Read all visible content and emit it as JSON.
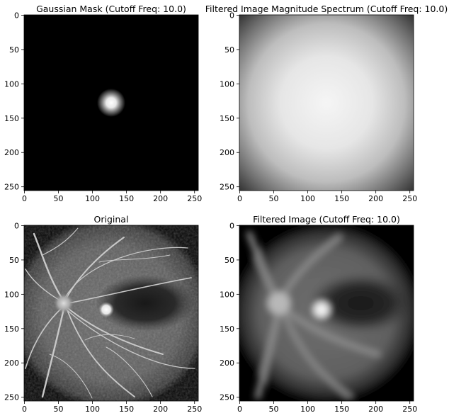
{
  "figure": {
    "layout": "2x2 grid",
    "background": "#ffffff"
  },
  "chart_data": [
    {
      "type": "heatmap",
      "title": "Gaussian Mask (Cutoff Freq: 10.0)",
      "colormap": "gray",
      "image_shape": [
        256,
        256
      ],
      "xlim": [
        0,
        255
      ],
      "ylim": [
        255,
        0
      ],
      "xticks": [
        0,
        50,
        100,
        150,
        200,
        250
      ],
      "yticks": [
        0,
        50,
        100,
        150,
        200,
        250
      ],
      "xtick_labels": [
        "0",
        "50",
        "100",
        "150",
        "200",
        "250"
      ],
      "ytick_labels": [
        "0",
        "50",
        "100",
        "150",
        "200",
        "250"
      ],
      "content": "black background with a small bright white gaussian blob",
      "blob_center": [
        128,
        128
      ],
      "cutoff_freq": 10.0
    },
    {
      "type": "heatmap",
      "title": "Filtered Image Magnitude Spectrum (Cutoff Freq: 10.0)",
      "colormap": "gray",
      "image_shape": [
        256,
        256
      ],
      "xlim": [
        0,
        255
      ],
      "ylim": [
        255,
        0
      ],
      "xticks": [
        0,
        50,
        100,
        150,
        200,
        250
      ],
      "yticks": [
        0,
        50,
        100,
        150,
        200,
        250
      ],
      "xtick_labels": [
        "0",
        "50",
        "100",
        "150",
        "200",
        "250"
      ],
      "ytick_labels": [
        "0",
        "50",
        "100",
        "150",
        "200",
        "250"
      ],
      "content": "smooth radial gradient, brightest at center, darkening toward the corners",
      "bright_center": [
        128,
        128
      ]
    },
    {
      "type": "heatmap",
      "title": "Original",
      "colormap": "gray",
      "image_shape": [
        256,
        256
      ],
      "xlim": [
        0,
        255
      ],
      "ylim": [
        255,
        0
      ],
      "xticks": [
        0,
        50,
        100,
        150,
        200,
        250
      ],
      "yticks": [
        0,
        50,
        100,
        150,
        200,
        250
      ],
      "xtick_labels": [
        "0",
        "50",
        "100",
        "150",
        "200",
        "250"
      ],
      "ytick_labels": [
        "0",
        "50",
        "100",
        "150",
        "200",
        "250"
      ],
      "content": "retinal fluorescein angiogram: circular fundus field with branching vessels from optic disc and a bright lesion",
      "optic_disc_center": [
        58,
        112
      ],
      "lesion_center": [
        120,
        122
      ],
      "dark_macular_region_center": [
        170,
        110
      ]
    },
    {
      "type": "heatmap",
      "title": "Filtered Image (Cutoff Freq: 10.0)",
      "colormap": "gray",
      "image_shape": [
        256,
        256
      ],
      "xlim": [
        0,
        255
      ],
      "ylim": [
        255,
        0
      ],
      "xticks": [
        0,
        50,
        100,
        150,
        200,
        250
      ],
      "yticks": [
        0,
        50,
        100,
        150,
        200,
        250
      ],
      "xtick_labels": [
        "0",
        "50",
        "100",
        "150",
        "200",
        "250"
      ],
      "ytick_labels": [
        "0",
        "50",
        "100",
        "150",
        "200",
        "250"
      ],
      "content": "low-pass blurred version of the original retinal image",
      "optic_disc_center": [
        58,
        112
      ],
      "lesion_center": [
        120,
        122
      ],
      "dark_macular_region_center": [
        170,
        110
      ],
      "cutoff_freq": 10.0
    }
  ]
}
